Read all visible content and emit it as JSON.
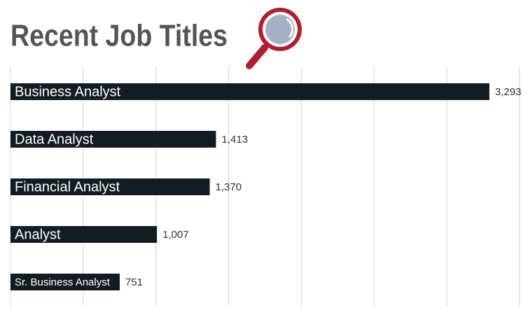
{
  "chart_data": {
    "type": "bar",
    "orientation": "horizontal",
    "title": "Recent Job Titles",
    "categories": [
      "Business Analyst",
      "Data Analyst",
      "Financial Analyst",
      "Analyst",
      "Sr. Business Analyst"
    ],
    "values": [
      3293,
      1413,
      1370,
      1007,
      751
    ],
    "value_labels": [
      "3,293",
      "1,413",
      "1,370",
      "1,007",
      "751"
    ],
    "color": "#111d22",
    "xlim": [
      0,
      3500
    ],
    "xticks": [
      0,
      500,
      1000,
      1500,
      2000,
      2500,
      3000,
      3500
    ],
    "grid": true
  }
}
